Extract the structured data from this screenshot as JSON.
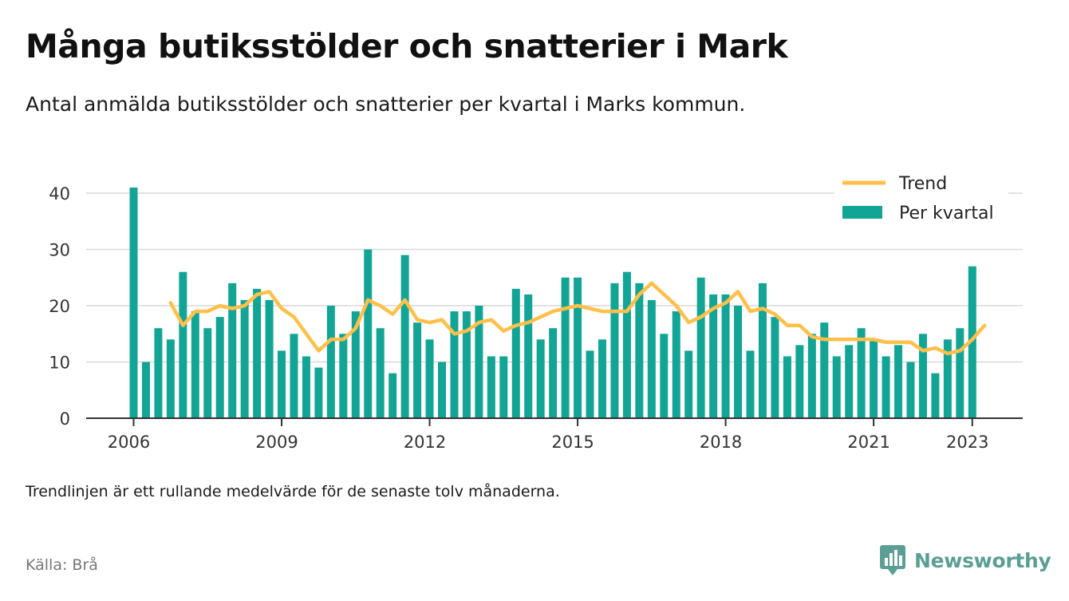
{
  "header": {
    "title": "Många butiksstölder och snatterier i Mark",
    "subtitle": "Antal anmälda butiksstölder och snatterier per kvartal i Marks kommun."
  },
  "footer": {
    "note": "Trendlinjen är ett rullande medelvärde för de senaste tolv månaderna.",
    "source": "Källa: Brå",
    "brand": "Newsworthy"
  },
  "colors": {
    "bars": "#12a596",
    "trend": "#ffc04a",
    "grid": "#d9d9d9",
    "axis": "#333333",
    "brand": "#5b9f94"
  },
  "chart_data": {
    "type": "bar",
    "x_start": "2006 Q1",
    "x_ticks": [
      "2006",
      "2009",
      "2012",
      "2015",
      "2018",
      "2021",
      "2023"
    ],
    "y_ticks": [
      0,
      10,
      20,
      30,
      40
    ],
    "ylim": [
      0,
      43
    ],
    "grid": true,
    "legend_position": "top-right",
    "series": [
      {
        "name": "Per kvartal",
        "kind": "bar",
        "values": [
          41,
          10,
          16,
          14,
          26,
          19,
          16,
          18,
          24,
          21,
          23,
          21,
          12,
          15,
          11,
          9,
          20,
          15,
          19,
          30,
          16,
          8,
          29,
          17,
          14,
          10,
          19,
          19,
          20,
          11,
          11,
          23,
          22,
          14,
          16,
          25,
          25,
          12,
          14,
          24,
          26,
          24,
          21,
          15,
          19,
          12,
          25,
          22,
          22,
          20,
          12,
          24,
          18,
          11,
          13,
          15,
          17,
          11,
          13,
          16,
          14,
          11,
          13,
          10,
          15,
          8,
          14,
          16,
          27
        ]
      },
      {
        "name": "Trend",
        "kind": "line",
        "start_index": 3,
        "values": [
          20.5,
          16.5,
          19,
          19,
          20,
          19.5,
          20,
          22,
          22.5,
          19.5,
          18,
          15,
          12,
          14,
          14,
          16,
          21,
          20,
          18.5,
          21,
          17.5,
          17,
          17.5,
          15,
          15.5,
          17,
          17.5,
          15.5,
          16.5,
          17,
          18,
          19,
          19.5,
          20,
          19.5,
          19,
          19,
          19,
          22,
          24,
          22,
          20,
          17,
          18,
          19.5,
          20.5,
          22.5,
          19,
          19.5,
          18.5,
          16.5,
          16.5,
          14.5,
          14,
          14,
          14,
          14,
          14,
          13.5,
          13.5,
          13.5,
          12,
          12.5,
          11.5,
          12,
          14,
          16.5
        ]
      }
    ]
  }
}
